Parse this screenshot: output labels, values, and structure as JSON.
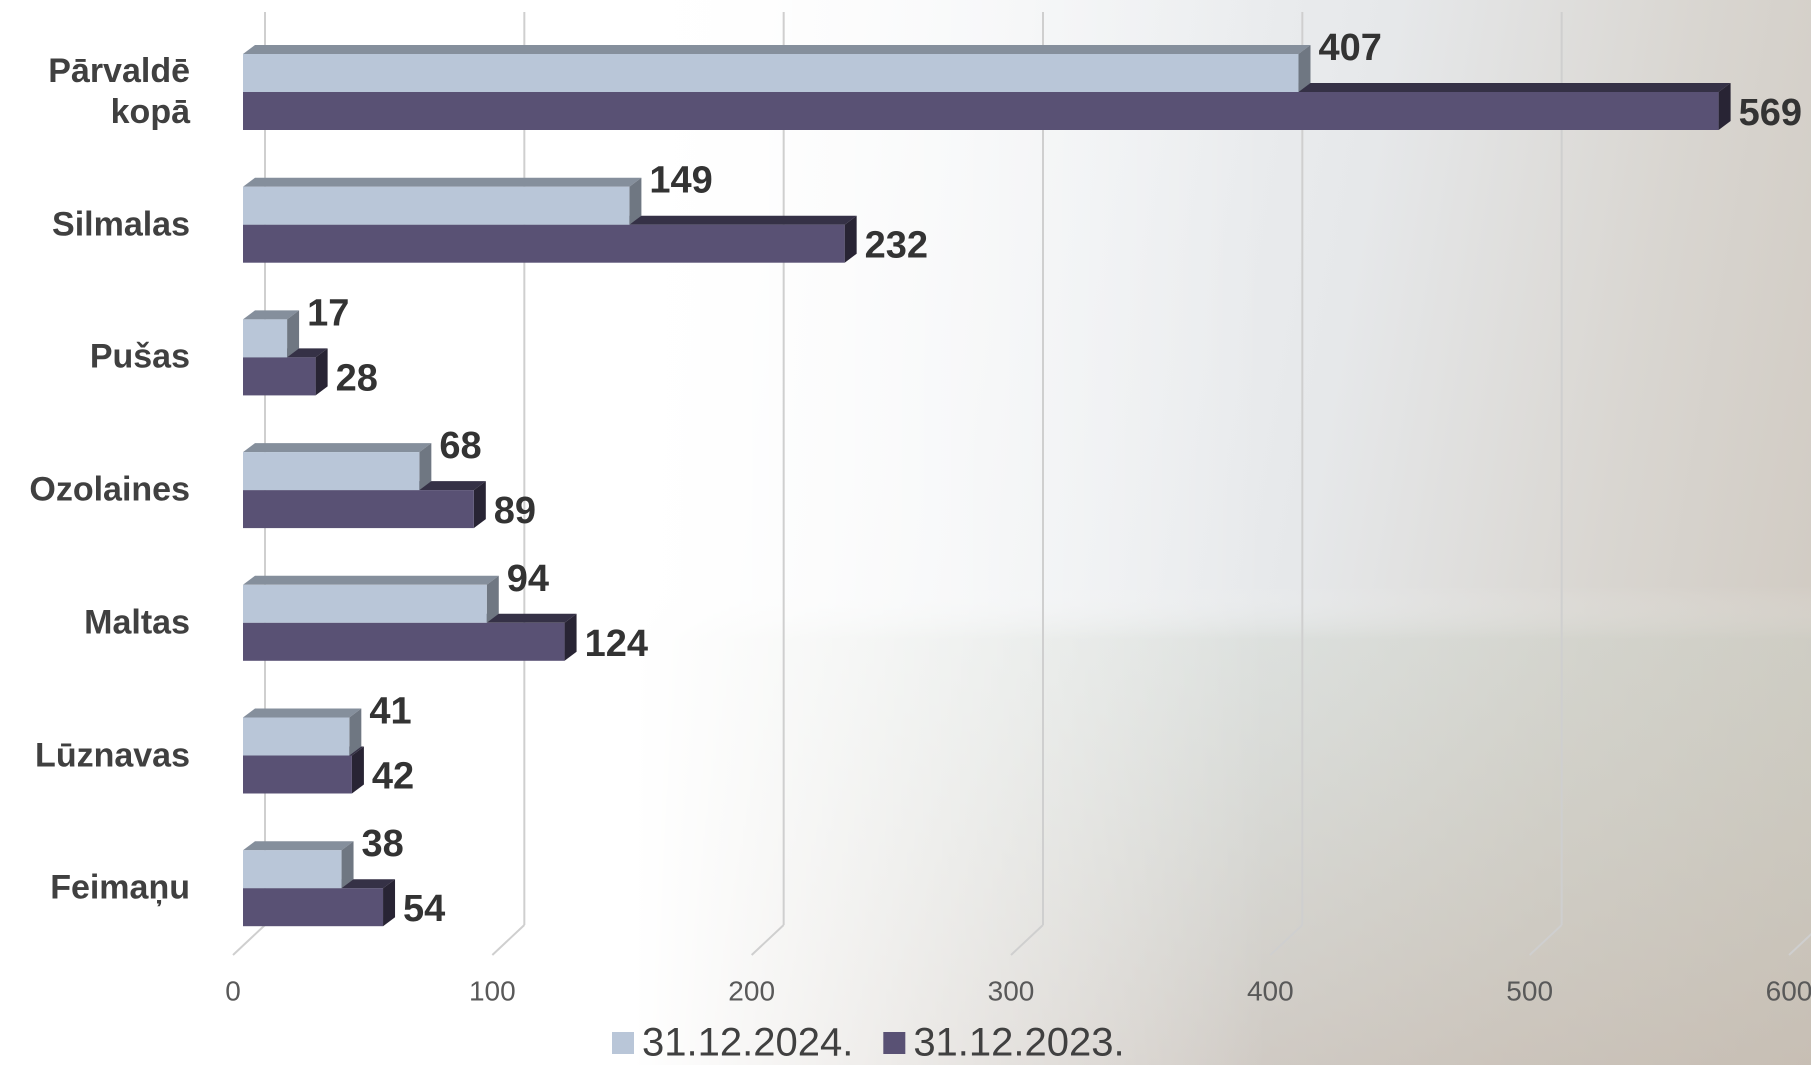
{
  "chart_data": {
    "type": "bar",
    "orientation": "horizontal",
    "categories": [
      "Pārvaldē kopā",
      "Silmalas",
      "Pušas",
      "Ozolaines",
      "Maltas",
      "Lūznavas",
      "Feimaņu"
    ],
    "series": [
      {
        "name": "31.12.2024.",
        "color": "#b9c6d8",
        "values": [
          407,
          149,
          17,
          68,
          94,
          41,
          38
        ]
      },
      {
        "name": "31.12.2023.",
        "color": "#595174",
        "values": [
          569,
          232,
          28,
          89,
          124,
          42,
          54
        ]
      }
    ],
    "xlim": [
      0,
      600
    ],
    "xticks": [
      0,
      100,
      200,
      300,
      400,
      500,
      600
    ],
    "grid": true
  }
}
